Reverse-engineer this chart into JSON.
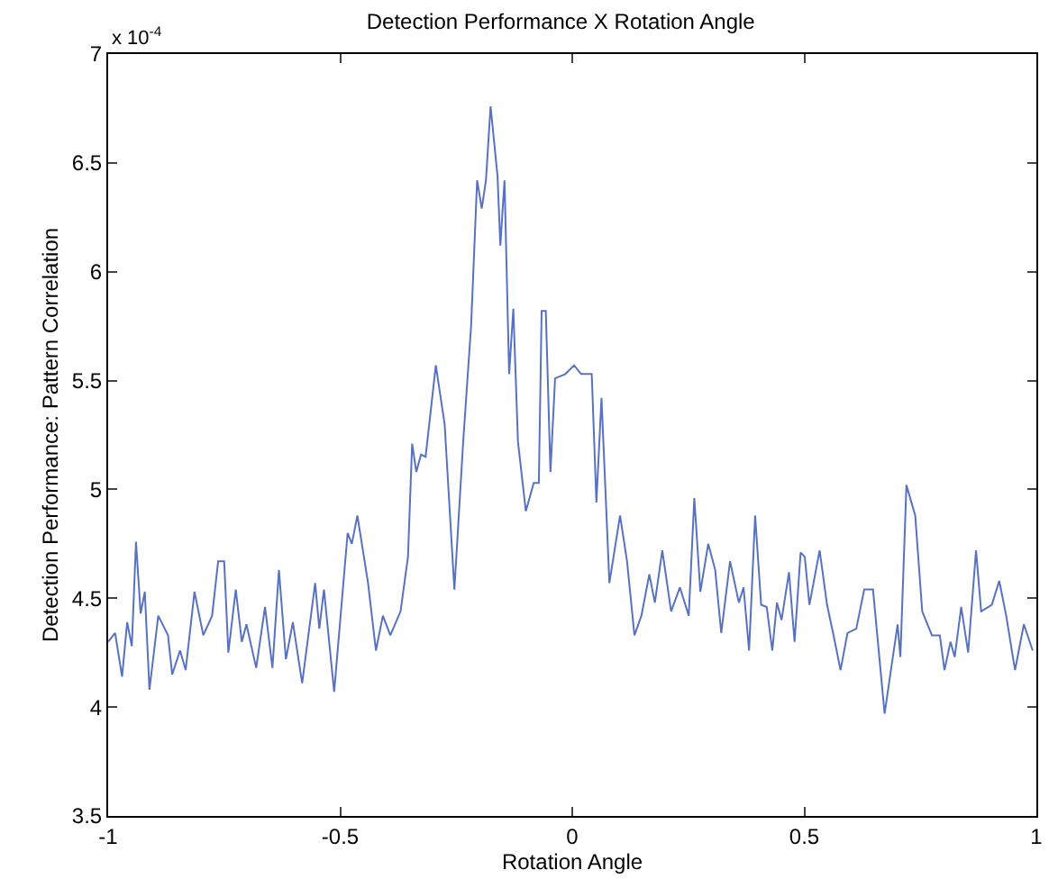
{
  "chart_data": {
    "type": "line",
    "title": "Detection Performance X Rotation Angle",
    "xlabel": "Rotation Angle",
    "ylabel": "Detection Performance: Pattern Correlation",
    "annotations": [
      "x 10$^{-4}$"
    ],
    "xlim": [
      -1,
      1
    ],
    "xticks": [
      -1,
      -0.5,
      0,
      0.5,
      1
    ],
    "ylim": [
      3.5,
      7
    ],
    "yticks": [
      3.5,
      4,
      4.5,
      5,
      5.5,
      6,
      6.5,
      7
    ],
    "series": [
      {
        "color": "#5872c2",
        "x": [
          -1,
          -0.985,
          -0.97,
          -0.959,
          -0.949,
          -0.94,
          -0.93,
          -0.921,
          -0.911,
          -0.892,
          -0.871,
          -0.862,
          -0.845,
          -0.833,
          -0.814,
          -0.795,
          -0.776,
          -0.763,
          -0.75,
          -0.741,
          -0.725,
          -0.712,
          -0.702,
          -0.681,
          -0.662,
          -0.646,
          -0.632,
          -0.617,
          -0.602,
          -0.582,
          -0.554,
          -0.545,
          -0.535,
          -0.513,
          -0.484,
          -0.475,
          -0.463,
          -0.44,
          -0.423,
          -0.408,
          -0.392,
          -0.37,
          -0.354,
          -0.345,
          -0.336,
          -0.326,
          -0.316,
          -0.294,
          -0.275,
          -0.254,
          -0.235,
          -0.218,
          -0.205,
          -0.195,
          -0.186,
          -0.176,
          -0.161,
          -0.155,
          -0.146,
          -0.136,
          -0.127,
          -0.117,
          -0.1,
          -0.083,
          -0.072,
          -0.066,
          -0.057,
          -0.047,
          -0.037,
          -0.015,
          0.004,
          0.019,
          0.042,
          0.052,
          0.063,
          0.08,
          0.103,
          0.118,
          0.134,
          0.149,
          0.166,
          0.178,
          0.194,
          0.213,
          0.232,
          0.251,
          0.263,
          0.276,
          0.293,
          0.308,
          0.321,
          0.34,
          0.359,
          0.369,
          0.381,
          0.394,
          0.407,
          0.419,
          0.431,
          0.441,
          0.451,
          0.467,
          0.479,
          0.492,
          0.501,
          0.511,
          0.533,
          0.549,
          0.562,
          0.578,
          0.593,
          0.612,
          0.629,
          0.648,
          0.673,
          0.688,
          0.701,
          0.707,
          0.72,
          0.739,
          0.754,
          0.775,
          0.792,
          0.802,
          0.815,
          0.824,
          0.838,
          0.853,
          0.87,
          0.881,
          0.904,
          0.92,
          0.935,
          0.954,
          0.973,
          0.992
        ],
        "values": [
          4.3,
          4.34,
          4.14,
          4.39,
          4.28,
          4.76,
          4.43,
          4.53,
          4.08,
          4.42,
          4.33,
          4.15,
          4.26,
          4.17,
          4.53,
          4.33,
          4.42,
          4.67,
          4.67,
          4.25,
          4.54,
          4.3,
          4.38,
          4.18,
          4.46,
          4.18,
          4.63,
          4.22,
          4.39,
          4.11,
          4.57,
          4.36,
          4.54,
          4.07,
          4.8,
          4.75,
          4.88,
          4.57,
          4.26,
          4.42,
          4.33,
          4.44,
          4.69,
          5.21,
          5.08,
          5.16,
          5.15,
          5.57,
          5.3,
          4.54,
          5.22,
          5.75,
          6.42,
          6.29,
          6.42,
          6.76,
          6.44,
          6.12,
          6.42,
          5.53,
          5.83,
          5.22,
          4.9,
          5.03,
          5.03,
          5.82,
          5.82,
          5.08,
          5.51,
          5.53,
          5.57,
          5.53,
          5.53,
          4.94,
          5.42,
          4.57,
          4.88,
          4.67,
          4.33,
          4.42,
          4.61,
          4.48,
          4.72,
          4.44,
          4.55,
          4.42,
          4.96,
          4.53,
          4.75,
          4.63,
          4.34,
          4.67,
          4.48,
          4.55,
          4.26,
          4.88,
          4.47,
          4.46,
          4.26,
          4.48,
          4.4,
          4.62,
          4.3,
          4.71,
          4.69,
          4.47,
          4.72,
          4.47,
          4.34,
          4.17,
          4.34,
          4.36,
          4.54,
          4.54,
          3.97,
          4.19,
          4.38,
          4.23,
          5.02,
          4.88,
          4.44,
          4.33,
          4.33,
          4.17,
          4.3,
          4.23,
          4.46,
          4.25,
          4.72,
          4.44,
          4.47,
          4.58,
          4.42,
          4.17,
          4.38,
          4.26
        ]
      }
    ]
  }
}
